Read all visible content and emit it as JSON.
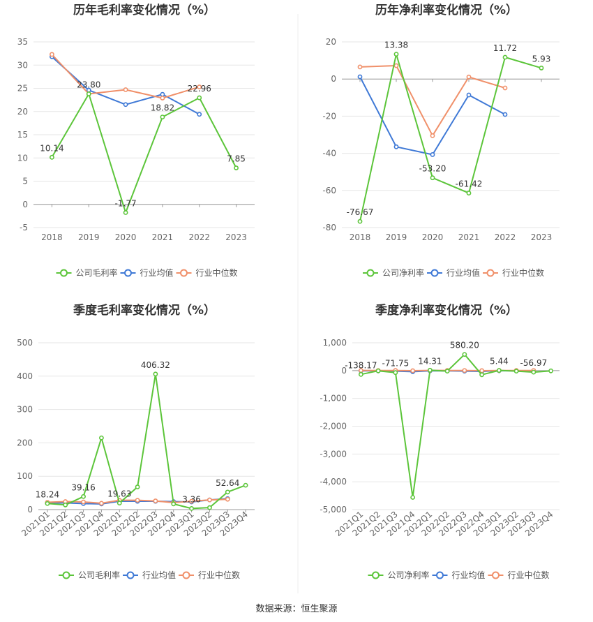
{
  "colors": {
    "company": "#5cc53a",
    "avg": "#3f79d6",
    "median": "#f0906a",
    "axis": "#bbbbbb",
    "grid": "#e6e6e6",
    "divider": "#e8e8e8"
  },
  "legend": {
    "company_gross": "公司毛利率",
    "company_net": "公司净利率",
    "avg": "行业均值",
    "median": "行业中位数"
  },
  "footer": {
    "source": "数据来源：恒生聚源"
  },
  "chart_data": [
    {
      "id": "annual-gross",
      "type": "line",
      "title": "历年毛利率变化情况（%）",
      "categories": [
        "2018",
        "2019",
        "2020",
        "2021",
        "2022",
        "2023"
      ],
      "ylim": [
        -5,
        35
      ],
      "yticks": [
        -5,
        0,
        5,
        10,
        15,
        20,
        25,
        30,
        35
      ],
      "series": [
        {
          "name": "公司毛利率",
          "key": "company",
          "values": [
            10.14,
            23.8,
            -1.77,
            18.82,
            22.96,
            7.85
          ]
        },
        {
          "name": "行业均值",
          "key": "avg",
          "values": [
            31.8,
            24.6,
            21.5,
            23.7,
            19.4,
            null
          ]
        },
        {
          "name": "行业中位数",
          "key": "median",
          "values": [
            32.3,
            23.8,
            24.7,
            22.9,
            25.3,
            null
          ]
        }
      ],
      "labels": [
        {
          "i": 0,
          "text": "10.14",
          "pos": "above"
        },
        {
          "i": 1,
          "text": "23.80",
          "pos": "above"
        },
        {
          "i": 2,
          "text": "-1.77",
          "pos": "above"
        },
        {
          "i": 3,
          "text": "18.82",
          "pos": "above"
        },
        {
          "i": 4,
          "text": "22.96",
          "pos": "above"
        },
        {
          "i": 5,
          "text": "7.85",
          "pos": "above"
        }
      ]
    },
    {
      "id": "annual-net",
      "type": "line",
      "title": "历年净利率变化情况（%）",
      "categories": [
        "2018",
        "2019",
        "2020",
        "2021",
        "2022",
        "2023"
      ],
      "ylim": [
        -80,
        20
      ],
      "yticks": [
        -80,
        -60,
        -40,
        -20,
        0,
        20
      ],
      "series": [
        {
          "name": "公司净利率",
          "key": "company",
          "values": [
            -76.67,
            13.38,
            -53.2,
            -61.42,
            11.72,
            5.93
          ]
        },
        {
          "name": "行业均值",
          "key": "avg",
          "values": [
            1.2,
            -36.5,
            -40.7,
            -8.6,
            -19.1,
            null
          ]
        },
        {
          "name": "行业中位数",
          "key": "median",
          "values": [
            6.5,
            7.2,
            -30.5,
            1.1,
            -4.8,
            null
          ]
        }
      ],
      "labels": [
        {
          "i": 0,
          "text": "-76.67",
          "pos": "above"
        },
        {
          "i": 1,
          "text": "13.38",
          "pos": "above"
        },
        {
          "i": 2,
          "text": "-53.20",
          "pos": "above"
        },
        {
          "i": 3,
          "text": "-61.42",
          "pos": "above"
        },
        {
          "i": 4,
          "text": "11.72",
          "pos": "above"
        },
        {
          "i": 5,
          "text": "5.93",
          "pos": "above"
        }
      ]
    },
    {
      "id": "quarterly-gross",
      "type": "line",
      "title": "季度毛利率变化情况（%）",
      "categories": [
        "2021Q1",
        "2021Q2",
        "2021Q3",
        "2021Q4",
        "2022Q1",
        "2022Q2",
        "2022Q3",
        "2022Q4",
        "2023Q1",
        "2023Q2",
        "2023Q3",
        "2023Q4"
      ],
      "ylim": [
        0,
        500
      ],
      "yticks": [
        0,
        100,
        200,
        300,
        400,
        500
      ],
      "series": [
        {
          "name": "公司毛利率",
          "key": "company",
          "values": [
            18.24,
            14,
            39.16,
            215,
            19.63,
            68,
            406.32,
            17,
            3.36,
            6,
            52.64,
            73
          ]
        },
        {
          "name": "行业均值",
          "key": "avg",
          "values": [
            20,
            20,
            18,
            17,
            25,
            25,
            25,
            24,
            23,
            29,
            33,
            null
          ]
        },
        {
          "name": "行业中位数",
          "key": "median",
          "values": [
            22,
            24,
            23,
            19,
            28,
            28,
            26,
            21,
            25,
            29,
            31,
            null
          ]
        }
      ],
      "labels": [
        {
          "i": 0,
          "text": "18.24",
          "pos": "above"
        },
        {
          "i": 2,
          "text": "39.16",
          "pos": "above"
        },
        {
          "i": 4,
          "text": "19.63",
          "pos": "above"
        },
        {
          "i": 6,
          "text": "406.32",
          "pos": "above"
        },
        {
          "i": 8,
          "text": "3.36",
          "pos": "above"
        },
        {
          "i": 10,
          "text": "52.64",
          "pos": "above"
        }
      ]
    },
    {
      "id": "quarterly-net",
      "type": "line",
      "title": "季度净利率变化情况（%）",
      "categories": [
        "2021Q1",
        "2021Q2",
        "2021Q3",
        "2021Q4",
        "2022Q1",
        "2022Q2",
        "2022Q3",
        "2022Q4",
        "2023Q1",
        "2023Q2",
        "2023Q3",
        "2023Q4"
      ],
      "ylim": [
        -5000,
        1000
      ],
      "yticks": [
        -5000,
        -4000,
        -3000,
        -2000,
        -1000,
        0,
        1000
      ],
      "series": [
        {
          "name": "公司净利率",
          "key": "company",
          "values": [
            -138.17,
            -10,
            -71.75,
            -4560,
            14.31,
            -20,
            580.2,
            -150,
            5.44,
            -20,
            -56.97,
            -10
          ]
        },
        {
          "name": "行业均值",
          "key": "avg",
          "values": [
            -10,
            -10,
            -20,
            -40,
            -10,
            -10,
            -20,
            -30,
            -5,
            -10,
            -20,
            null
          ]
        },
        {
          "name": "行业中位数",
          "key": "median",
          "values": [
            5,
            3,
            4,
            -5,
            5,
            4,
            3,
            -3,
            4,
            4,
            3,
            null
          ]
        }
      ],
      "labels": [
        {
          "i": 0,
          "text": "-138.17",
          "pos": "above"
        },
        {
          "i": 2,
          "text": "-71.75",
          "pos": "above"
        },
        {
          "i": 4,
          "text": "14.31",
          "pos": "above"
        },
        {
          "i": 6,
          "text": "580.20",
          "pos": "above"
        },
        {
          "i": 8,
          "text": "5.44",
          "pos": "above"
        },
        {
          "i": 10,
          "text": "-56.97",
          "pos": "above"
        }
      ]
    }
  ]
}
